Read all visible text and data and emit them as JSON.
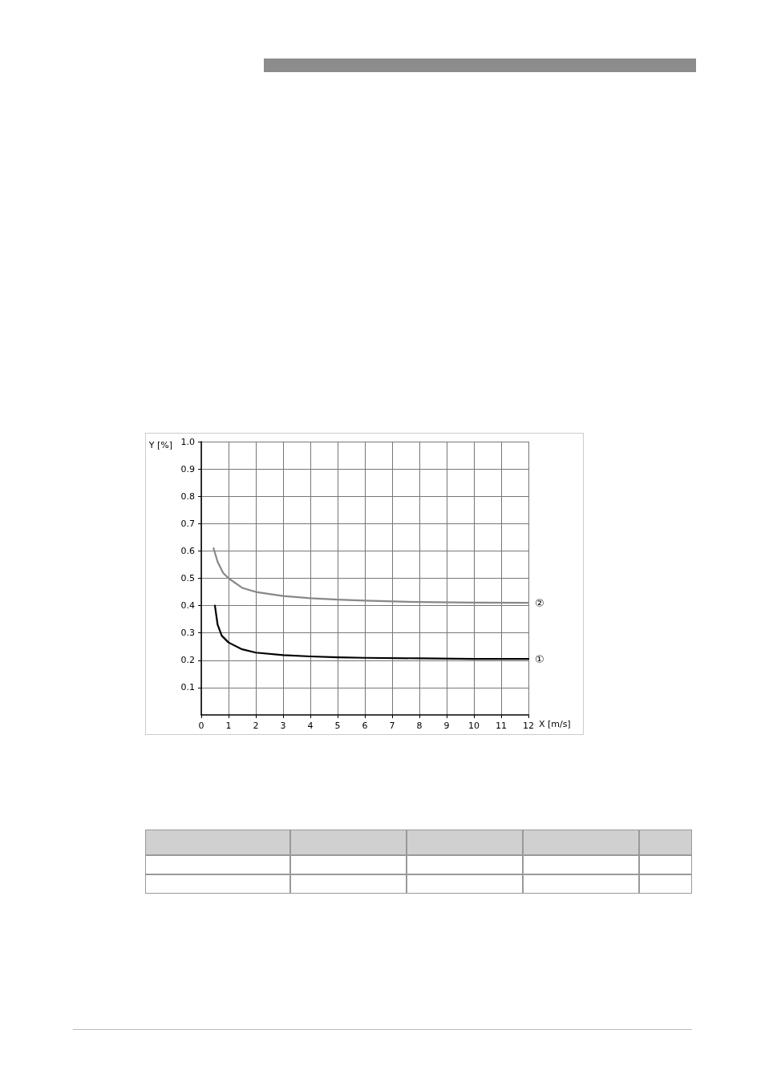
{
  "chart_data": {
    "type": "line",
    "xlabel": "X [m/s]",
    "ylabel": "Y [%]",
    "xlim": [
      0,
      12
    ],
    "xticks": [
      0,
      1,
      2,
      3,
      4,
      5,
      6,
      7,
      8,
      9,
      10,
      11,
      12
    ],
    "ylim": [
      0,
      1
    ],
    "yticks": [
      0.1,
      0.2,
      0.3,
      0.4,
      0.5,
      0.6,
      0.7,
      0.8,
      0.9,
      {
        "value": 1,
        "label": "1.0"
      }
    ],
    "grid": true,
    "legend": false,
    "marker": "none",
    "line_style": "solid",
    "series": [
      {
        "name": "①",
        "color": "#000000",
        "x": [
          0.5,
          0.6,
          0.75,
          1,
          1.5,
          2,
          3,
          4,
          5,
          6,
          8,
          10,
          12
        ],
        "values": [
          0.4,
          0.33,
          0.29,
          0.265,
          0.24,
          0.228,
          0.219,
          0.214,
          0.211,
          0.209,
          0.207,
          0.205,
          0.205
        ]
      },
      {
        "name": "②",
        "color": "#888888",
        "x": [
          0.45,
          0.6,
          0.8,
          1,
          1.5,
          2,
          3,
          4,
          5,
          6,
          8,
          10,
          12
        ],
        "values": [
          0.61,
          0.56,
          0.52,
          0.5,
          0.465,
          0.45,
          0.435,
          0.427,
          0.422,
          0.418,
          0.413,
          0.411,
          0.41
        ]
      }
    ]
  }
}
